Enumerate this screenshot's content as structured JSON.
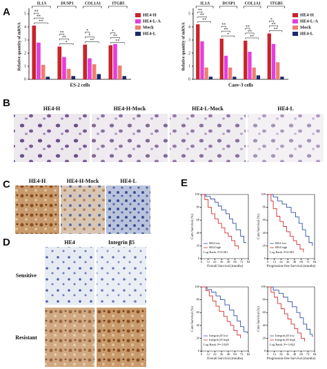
{
  "panel_letters": [
    "A",
    "B",
    "C",
    "D",
    "E"
  ],
  "panel_b": {
    "labels": [
      "HE4-H",
      "HE4-H-Mock",
      "HE4-L-Mock",
      "HE4-L"
    ]
  },
  "panel_c": {
    "labels": [
      "HE4-H",
      "HE4-H-Mock",
      "HE4-L"
    ]
  },
  "panel_d": {
    "columns": [
      "HE4",
      "Integrin β5"
    ],
    "rows": [
      "Sensitive",
      "Resistant"
    ]
  },
  "chart_data": [
    {
      "type": "bar",
      "ylabel": "Relative quantity of mRNA",
      "xlabel": "ES-2 cells",
      "categories": [
        "IL1A",
        "DUSP1",
        "COL1A1",
        "ITGB5"
      ],
      "series": [
        {
          "name": "HE4-H",
          "color": "#c8242b",
          "values": [
            4.1,
            2.5,
            2.65,
            2.6
          ]
        },
        {
          "name": "HE4-L-A",
          "color": "#e33fe0",
          "values": [
            2.8,
            1.7,
            1.6,
            2.7
          ]
        },
        {
          "name": "Mock",
          "color": "#f07e6e",
          "values": [
            1.1,
            0.8,
            1.15,
            1.05
          ]
        },
        {
          "name": "HE4-L",
          "color": "#1b2a6e",
          "values": [
            0.2,
            0.25,
            0.4,
            0.25
          ]
        }
      ],
      "significance": [
        [
          "**",
          "**",
          "**"
        ],
        [
          "**",
          "**",
          "*"
        ],
        [
          "*",
          "*",
          "**"
        ],
        [
          "*",
          "**",
          "**"
        ]
      ],
      "ylim": [
        0,
        5
      ],
      "yticks": [
        0,
        1,
        2,
        3,
        4,
        5
      ]
    },
    {
      "type": "bar",
      "ylabel": "Relative quantity of mRNA",
      "xlabel": "Caov-3 cells",
      "categories": [
        "IL1A",
        "DUSP1",
        "COL1A1",
        "ITGB5"
      ],
      "series": [
        {
          "name": "HE4-H",
          "color": "#c8242b",
          "values": [
            4.2,
            3.1,
            2.95,
            3.5
          ]
        },
        {
          "name": "HE4-L-A",
          "color": "#e33fe0",
          "values": [
            2.9,
            1.8,
            2.1,
            2.7
          ]
        },
        {
          "name": "Mock",
          "color": "#f07e6e",
          "values": [
            0.9,
            0.9,
            0.9,
            1.3
          ]
        },
        {
          "name": "HE4-L",
          "color": "#1b2a6e",
          "values": [
            0.2,
            0.2,
            0.3,
            0.2
          ]
        }
      ],
      "significance": [
        [
          "**",
          "**",
          "**"
        ],
        [
          "**",
          "**",
          "*"
        ],
        [
          "**",
          "**",
          "**"
        ],
        [
          "*",
          "**",
          "**"
        ]
      ],
      "ylim": [
        0,
        5
      ],
      "yticks": [
        0,
        1,
        2,
        3,
        4,
        5
      ]
    },
    {
      "type": "line",
      "drawstyle": "steps-post",
      "ylabel": "Cum Survival (%)",
      "xlabel": "Overall Survival (months)",
      "annotation": "Log Rank: P=0.001",
      "series": [
        {
          "name": "HE4 low",
          "color": "#2c4fa3",
          "x": [
            0,
            8,
            16,
            24,
            30,
            36,
            44,
            50,
            56,
            62,
            70,
            76,
            80
          ],
          "values": [
            100,
            97,
            93,
            88,
            82,
            76,
            70,
            62,
            55,
            45,
            35,
            25,
            25
          ]
        },
        {
          "name": "HE4 high",
          "color": "#d62a2a",
          "x": [
            0,
            6,
            12,
            18,
            24,
            30,
            36,
            42,
            48,
            54,
            60,
            66
          ],
          "values": [
            100,
            92,
            80,
            70,
            62,
            55,
            48,
            40,
            35,
            28,
            20,
            15
          ]
        }
      ],
      "xlim": [
        0,
        84
      ],
      "xticks": [
        0,
        12,
        24,
        36,
        48,
        60,
        72,
        84
      ],
      "ylim": [
        0,
        100
      ],
      "yticks": [
        0,
        20,
        40,
        60,
        80,
        100
      ]
    },
    {
      "type": "line",
      "drawstyle": "steps-post",
      "ylabel": "Cum Survival (%)",
      "xlabel": "Progression-free Survival (months)",
      "annotation": "Log Rank: P=0.001",
      "series": [
        {
          "name": "HE4 low",
          "color": "#2c4fa3",
          "x": [
            0,
            10,
            18,
            26,
            34,
            42,
            50,
            56,
            62,
            68,
            74,
            80
          ],
          "values": [
            100,
            96,
            90,
            85,
            80,
            72,
            65,
            55,
            45,
            35,
            25,
            20
          ]
        },
        {
          "name": "HE4 high",
          "color": "#d62a2a",
          "x": [
            0,
            6,
            10,
            16,
            22,
            28,
            34,
            40,
            46,
            52,
            58,
            64
          ],
          "values": [
            100,
            90,
            78,
            66,
            58,
            50,
            42,
            35,
            28,
            22,
            15,
            10
          ]
        }
      ],
      "xlim": [
        0,
        84
      ],
      "xticks": [
        0,
        12,
        24,
        36,
        48,
        60,
        72,
        84
      ],
      "ylim": [
        0,
        100
      ],
      "yticks": [
        0,
        20,
        40,
        60,
        80,
        100
      ]
    },
    {
      "type": "line",
      "drawstyle": "steps-post",
      "ylabel": "Cum Survival (%)",
      "xlabel": "Overall Survival (months)",
      "annotation": "Log Rank: P= 0.029",
      "series": [
        {
          "name": "Integrin β5 low",
          "color": "#2c4fa3",
          "x": [
            0,
            10,
            18,
            26,
            34,
            42,
            50,
            58,
            64,
            70,
            76,
            82
          ],
          "values": [
            100,
            96,
            92,
            86,
            80,
            72,
            64,
            55,
            47,
            38,
            30,
            28
          ]
        },
        {
          "name": "Integrin β5 high",
          "color": "#d62a2a",
          "x": [
            0,
            8,
            14,
            20,
            26,
            32,
            40,
            46,
            52,
            58,
            64,
            70
          ],
          "values": [
            100,
            94,
            86,
            78,
            70,
            62,
            54,
            46,
            40,
            32,
            25,
            20
          ]
        }
      ],
      "xlim": [
        0,
        84
      ],
      "xticks": [
        0,
        12,
        24,
        36,
        48,
        60,
        72,
        84
      ],
      "ylim": [
        0,
        100
      ],
      "yticks": [
        0,
        20,
        40,
        60,
        80,
        100
      ]
    },
    {
      "type": "line",
      "drawstyle": "steps-post",
      "ylabel": "Cum Survival (%)",
      "xlabel": "Progression-free Survival (months)",
      "annotation": "Log Rank: P= 0.042",
      "series": [
        {
          "name": "Integrin β5 low",
          "color": "#2c4fa3",
          "x": [
            0,
            10,
            20,
            28,
            36,
            44,
            52,
            58,
            64,
            70,
            76,
            80
          ],
          "values": [
            100,
            95,
            90,
            84,
            77,
            69,
            60,
            52,
            42,
            34,
            26,
            22
          ]
        },
        {
          "name": "Integrin β5 high",
          "color": "#d62a2a",
          "x": [
            0,
            6,
            12,
            18,
            24,
            30,
            36,
            42,
            48,
            54,
            60,
            66
          ],
          "values": [
            100,
            92,
            84,
            74,
            66,
            58,
            50,
            42,
            35,
            28,
            20,
            15
          ]
        }
      ],
      "xlim": [
        0,
        84
      ],
      "xticks": [
        0,
        12,
        24,
        36,
        48,
        60,
        72,
        84
      ],
      "ylim": [
        0,
        100
      ],
      "yticks": [
        0,
        20,
        40,
        60,
        80,
        100
      ]
    }
  ]
}
